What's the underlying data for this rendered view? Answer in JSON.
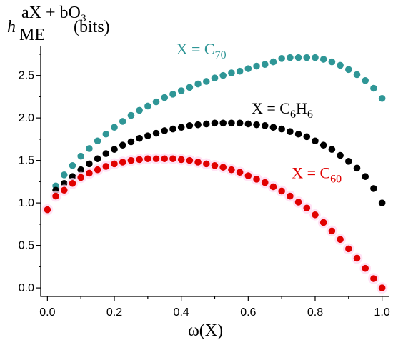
{
  "chart_data": {
    "type": "scatter",
    "title": "",
    "xlabel": "ω(X)",
    "ylabel": {
      "base": "h",
      "subscript": "ME",
      "superscript": "aX + bO₃",
      "suffix": "(bits)"
    },
    "xlim": [
      -0.02,
      1.02
    ],
    "ylim": [
      -0.1,
      2.85
    ],
    "x_ticks": [
      "0.0",
      "0.2",
      "0.4",
      "0.6",
      "0.8",
      "1.0"
    ],
    "y_ticks": [
      "0.0",
      "0.5",
      "1.0",
      "1.5",
      "2.0",
      "2.5"
    ],
    "grid": false,
    "legend": "none",
    "series": [
      {
        "name": "X = C70",
        "label_parts": {
          "prefix": "X = C",
          "subscript": "70"
        },
        "color": "#2f9696",
        "label_pos_x": 0.385,
        "label_pos_y": 2.75,
        "x": [
          0.0,
          0.025,
          0.05,
          0.075,
          0.1,
          0.125,
          0.15,
          0.175,
          0.2,
          0.225,
          0.25,
          0.275,
          0.3,
          0.325,
          0.35,
          0.375,
          0.4,
          0.425,
          0.45,
          0.475,
          0.5,
          0.525,
          0.55,
          0.575,
          0.6,
          0.625,
          0.65,
          0.675,
          0.7,
          0.725,
          0.75,
          0.775,
          0.8,
          0.825,
          0.85,
          0.875,
          0.9,
          0.925,
          0.95,
          0.975,
          1.0
        ],
        "values": [
          0.92,
          1.2,
          1.33,
          1.44,
          1.55,
          1.64,
          1.73,
          1.81,
          1.89,
          1.96,
          2.03,
          2.09,
          2.14,
          2.19,
          2.24,
          2.28,
          2.32,
          2.36,
          2.4,
          2.43,
          2.47,
          2.5,
          2.53,
          2.55,
          2.58,
          2.61,
          2.63,
          2.66,
          2.7,
          2.71,
          2.71,
          2.71,
          2.71,
          2.69,
          2.66,
          2.62,
          2.57,
          2.51,
          2.44,
          2.35,
          2.23
        ]
      },
      {
        "name": "X = C6H6",
        "label_parts": {
          "prefix": "X = C",
          "subscript": "6",
          "middle": "H",
          "subscript2": "6"
        },
        "color": "#000000",
        "label_pos_x": 0.61,
        "label_pos_y": 2.05,
        "x": [
          0.0,
          0.025,
          0.05,
          0.075,
          0.1,
          0.125,
          0.15,
          0.175,
          0.2,
          0.225,
          0.25,
          0.275,
          0.3,
          0.325,
          0.35,
          0.375,
          0.4,
          0.425,
          0.45,
          0.475,
          0.5,
          0.525,
          0.55,
          0.575,
          0.6,
          0.625,
          0.65,
          0.675,
          0.7,
          0.725,
          0.75,
          0.775,
          0.8,
          0.825,
          0.85,
          0.875,
          0.9,
          0.925,
          0.95,
          0.975,
          1.0
        ],
        "values": [
          0.92,
          1.15,
          1.23,
          1.31,
          1.39,
          1.46,
          1.52,
          1.58,
          1.63,
          1.68,
          1.72,
          1.76,
          1.79,
          1.82,
          1.85,
          1.87,
          1.89,
          1.91,
          1.92,
          1.93,
          1.94,
          1.94,
          1.94,
          1.94,
          1.93,
          1.92,
          1.91,
          1.89,
          1.87,
          1.84,
          1.81,
          1.78,
          1.73,
          1.68,
          1.63,
          1.56,
          1.49,
          1.41,
          1.31,
          1.17,
          1.0
        ]
      },
      {
        "name": "X = C60",
        "label_parts": {
          "prefix": "X = C",
          "subscript": "60"
        },
        "color": "#e10000",
        "label_pos_x": 0.73,
        "label_pos_y": 1.29,
        "x": [
          0.0,
          0.025,
          0.05,
          0.075,
          0.1,
          0.125,
          0.15,
          0.175,
          0.2,
          0.225,
          0.25,
          0.275,
          0.3,
          0.325,
          0.35,
          0.375,
          0.4,
          0.425,
          0.45,
          0.475,
          0.5,
          0.525,
          0.55,
          0.575,
          0.6,
          0.625,
          0.65,
          0.675,
          0.7,
          0.725,
          0.75,
          0.775,
          0.8,
          0.825,
          0.85,
          0.875,
          0.9,
          0.925,
          0.95,
          0.975,
          1.0
        ],
        "values": [
          0.92,
          1.08,
          1.15,
          1.23,
          1.3,
          1.35,
          1.39,
          1.43,
          1.46,
          1.48,
          1.5,
          1.51,
          1.52,
          1.52,
          1.52,
          1.52,
          1.51,
          1.5,
          1.48,
          1.46,
          1.44,
          1.42,
          1.39,
          1.36,
          1.32,
          1.28,
          1.24,
          1.19,
          1.14,
          1.08,
          1.01,
          0.94,
          0.86,
          0.77,
          0.67,
          0.57,
          0.46,
          0.35,
          0.23,
          0.11,
          0.0
        ]
      }
    ]
  }
}
